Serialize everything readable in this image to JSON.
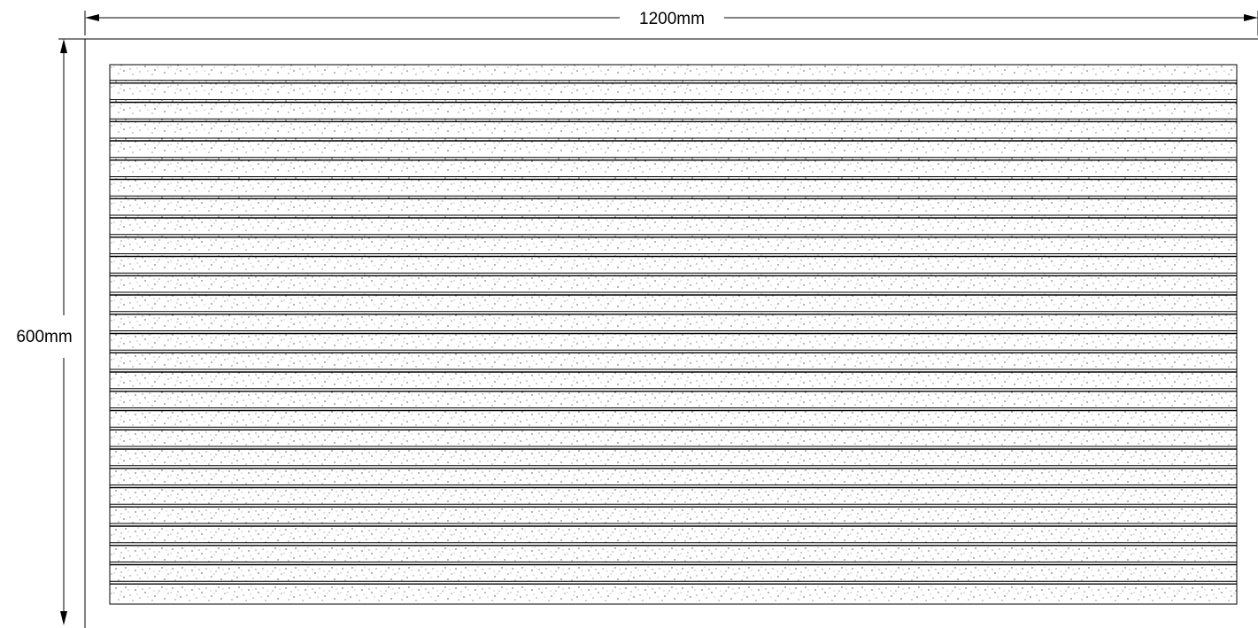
{
  "dimensions": {
    "width_label": "1200mm",
    "height_label": "600mm"
  },
  "panel": {
    "groove_count": 27,
    "texture": "speckle-dots"
  },
  "colors": {
    "line": "#000000",
    "background": "#ffffff"
  }
}
